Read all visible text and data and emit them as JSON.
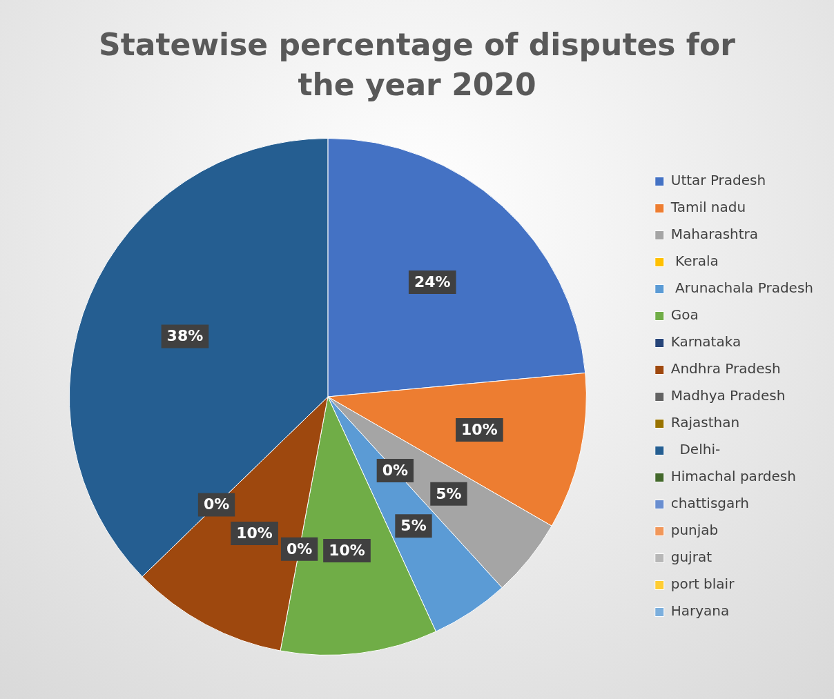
{
  "chart_data": {
    "type": "pie",
    "title": "Statewise percentage of disputes for the year 2020",
    "categories": [
      "Uttar Pradesh",
      "Tamil nadu",
      "Maharashtra",
      " Kerala",
      " Arunachala Pradesh",
      "Goa",
      "Karnataka",
      "Andhra Pradesh",
      "Madhya Pradesh",
      "Rajasthan",
      "  Delhi-",
      "Himachal pardesh",
      "chattisgarh",
      "punjab",
      "gujrat",
      "port blair",
      "Haryana"
    ],
    "values": [
      24,
      10,
      5,
      0,
      5,
      10,
      0,
      10,
      0,
      0,
      38,
      0,
      0,
      0,
      0,
      0,
      0
    ],
    "value_labels": [
      "24%",
      "10%",
      "5%",
      "0%",
      "5%",
      "10%",
      "0%",
      "10%",
      "0%",
      null,
      "38%",
      null,
      null,
      null,
      null,
      null,
      null
    ],
    "colors": [
      "#4472c4",
      "#ed7d31",
      "#a5a5a5",
      "#ffc000",
      "#5b9bd5",
      "#70ad47",
      "#264478",
      "#9e480e",
      "#636363",
      "#997300",
      "#255e91",
      "#43682b",
      "#698ed0",
      "#f1975a",
      "#b7b7b7",
      "#ffcd33",
      "#7cafdd"
    ],
    "legend": "right"
  }
}
